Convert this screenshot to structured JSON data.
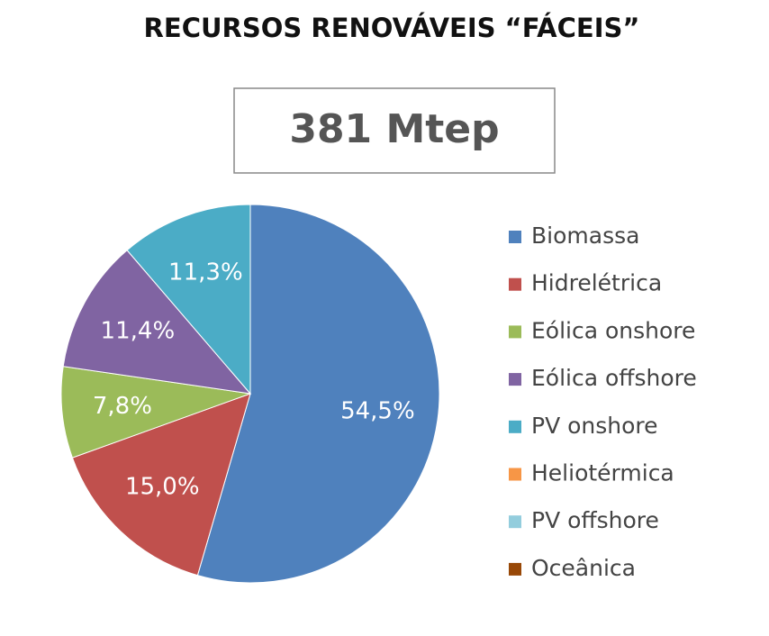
{
  "chart_data": {
    "type": "pie",
    "title": "RECURSOS RENOVÁVEIS “FÁCEIS”",
    "subtitle": "381 Mtep",
    "categories": [
      "Biomassa",
      "Hidrelétrica",
      "Eólica onshore",
      "Eólica offshore",
      "PV onshore",
      "Heliotérmica",
      "PV offshore",
      "Oceânica"
    ],
    "values": [
      54.5,
      15.0,
      7.8,
      11.4,
      11.3,
      0,
      0,
      0
    ],
    "value_labels": [
      "54,5%",
      "15,0%",
      "7,8%",
      "11,4%",
      "11,3%",
      null,
      null,
      null
    ],
    "colors": [
      "#4f81bd",
      "#c0504d",
      "#9bbb59",
      "#8064a2",
      "#4bacc6",
      "#f79646",
      "#93cddd",
      "#984807"
    ],
    "legend": "right"
  }
}
